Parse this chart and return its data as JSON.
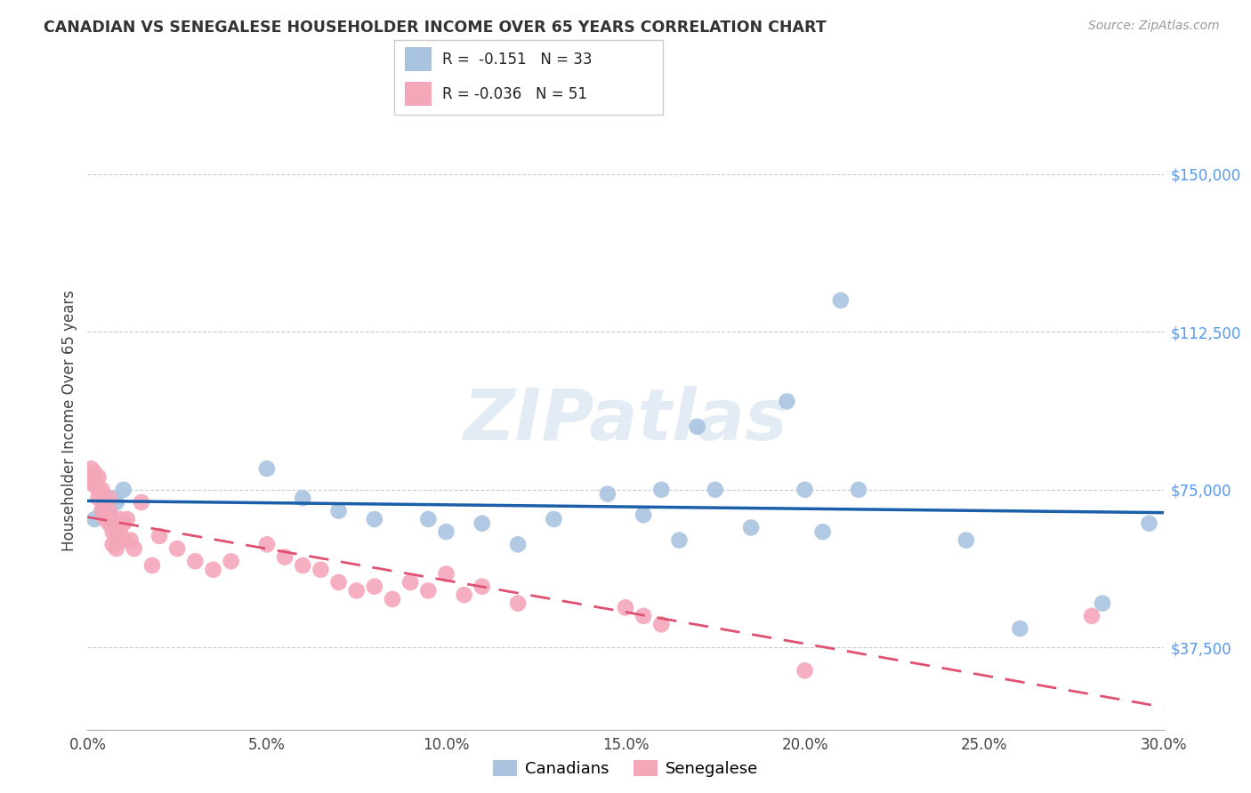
{
  "title": "CANADIAN VS SENEGALESE HOUSEHOLDER INCOME OVER 65 YEARS CORRELATION CHART",
  "source": "Source: ZipAtlas.com",
  "ylabel": "Householder Income Over 65 years",
  "xlabel_ticks": [
    "0.0%",
    "5.0%",
    "10.0%",
    "15.0%",
    "20.0%",
    "25.0%",
    "30.0%"
  ],
  "ytick_labels": [
    "$37,500",
    "$75,000",
    "$112,500",
    "$150,000"
  ],
  "ytick_values": [
    37500,
    75000,
    112500,
    150000
  ],
  "xlim": [
    0.0,
    0.3
  ],
  "ylim": [
    18000,
    165000
  ],
  "canadian_R": -0.151,
  "canadian_N": 33,
  "senegalese_R": -0.036,
  "senegalese_N": 51,
  "canadian_color": "#aac4e0",
  "senegalese_color": "#f4a7b9",
  "canadian_line_color": "#1a5fa8",
  "senegalese_line_color": "#e05070",
  "watermark": "ZIPatlas",
  "canadian_x": [
    0.002,
    0.004,
    0.005,
    0.006,
    0.007,
    0.008,
    0.009,
    0.01,
    0.05,
    0.06,
    0.07,
    0.08,
    0.095,
    0.1,
    0.11,
    0.12,
    0.13,
    0.145,
    0.155,
    0.16,
    0.165,
    0.17,
    0.175,
    0.185,
    0.195,
    0.2,
    0.205,
    0.21,
    0.215,
    0.245,
    0.26,
    0.283,
    0.296
  ],
  "canadian_y": [
    68000,
    70000,
    71000,
    69000,
    73000,
    72000,
    67000,
    75000,
    80000,
    73000,
    70000,
    68000,
    68000,
    65000,
    67000,
    62000,
    68000,
    74000,
    69000,
    75000,
    63000,
    90000,
    75000,
    66000,
    96000,
    75000,
    65000,
    120000,
    75000,
    63000,
    42000,
    48000,
    67000
  ],
  "senegalese_x": [
    0.001,
    0.001,
    0.002,
    0.002,
    0.003,
    0.003,
    0.003,
    0.004,
    0.004,
    0.005,
    0.005,
    0.006,
    0.006,
    0.006,
    0.007,
    0.007,
    0.008,
    0.008,
    0.009,
    0.009,
    0.01,
    0.01,
    0.011,
    0.012,
    0.013,
    0.015,
    0.018,
    0.02,
    0.025,
    0.03,
    0.035,
    0.04,
    0.05,
    0.055,
    0.06,
    0.065,
    0.07,
    0.075,
    0.08,
    0.085,
    0.09,
    0.095,
    0.1,
    0.105,
    0.11,
    0.12,
    0.15,
    0.155,
    0.16,
    0.2,
    0.28
  ],
  "senegalese_y": [
    80000,
    77000,
    79000,
    76000,
    78000,
    75000,
    73000,
    75000,
    70000,
    72000,
    68000,
    73000,
    70000,
    67000,
    65000,
    62000,
    64000,
    61000,
    68000,
    65000,
    67000,
    63000,
    68000,
    63000,
    61000,
    72000,
    57000,
    64000,
    61000,
    58000,
    56000,
    58000,
    62000,
    59000,
    57000,
    56000,
    53000,
    51000,
    52000,
    49000,
    53000,
    51000,
    55000,
    50000,
    52000,
    48000,
    47000,
    45000,
    43000,
    32000,
    45000
  ]
}
